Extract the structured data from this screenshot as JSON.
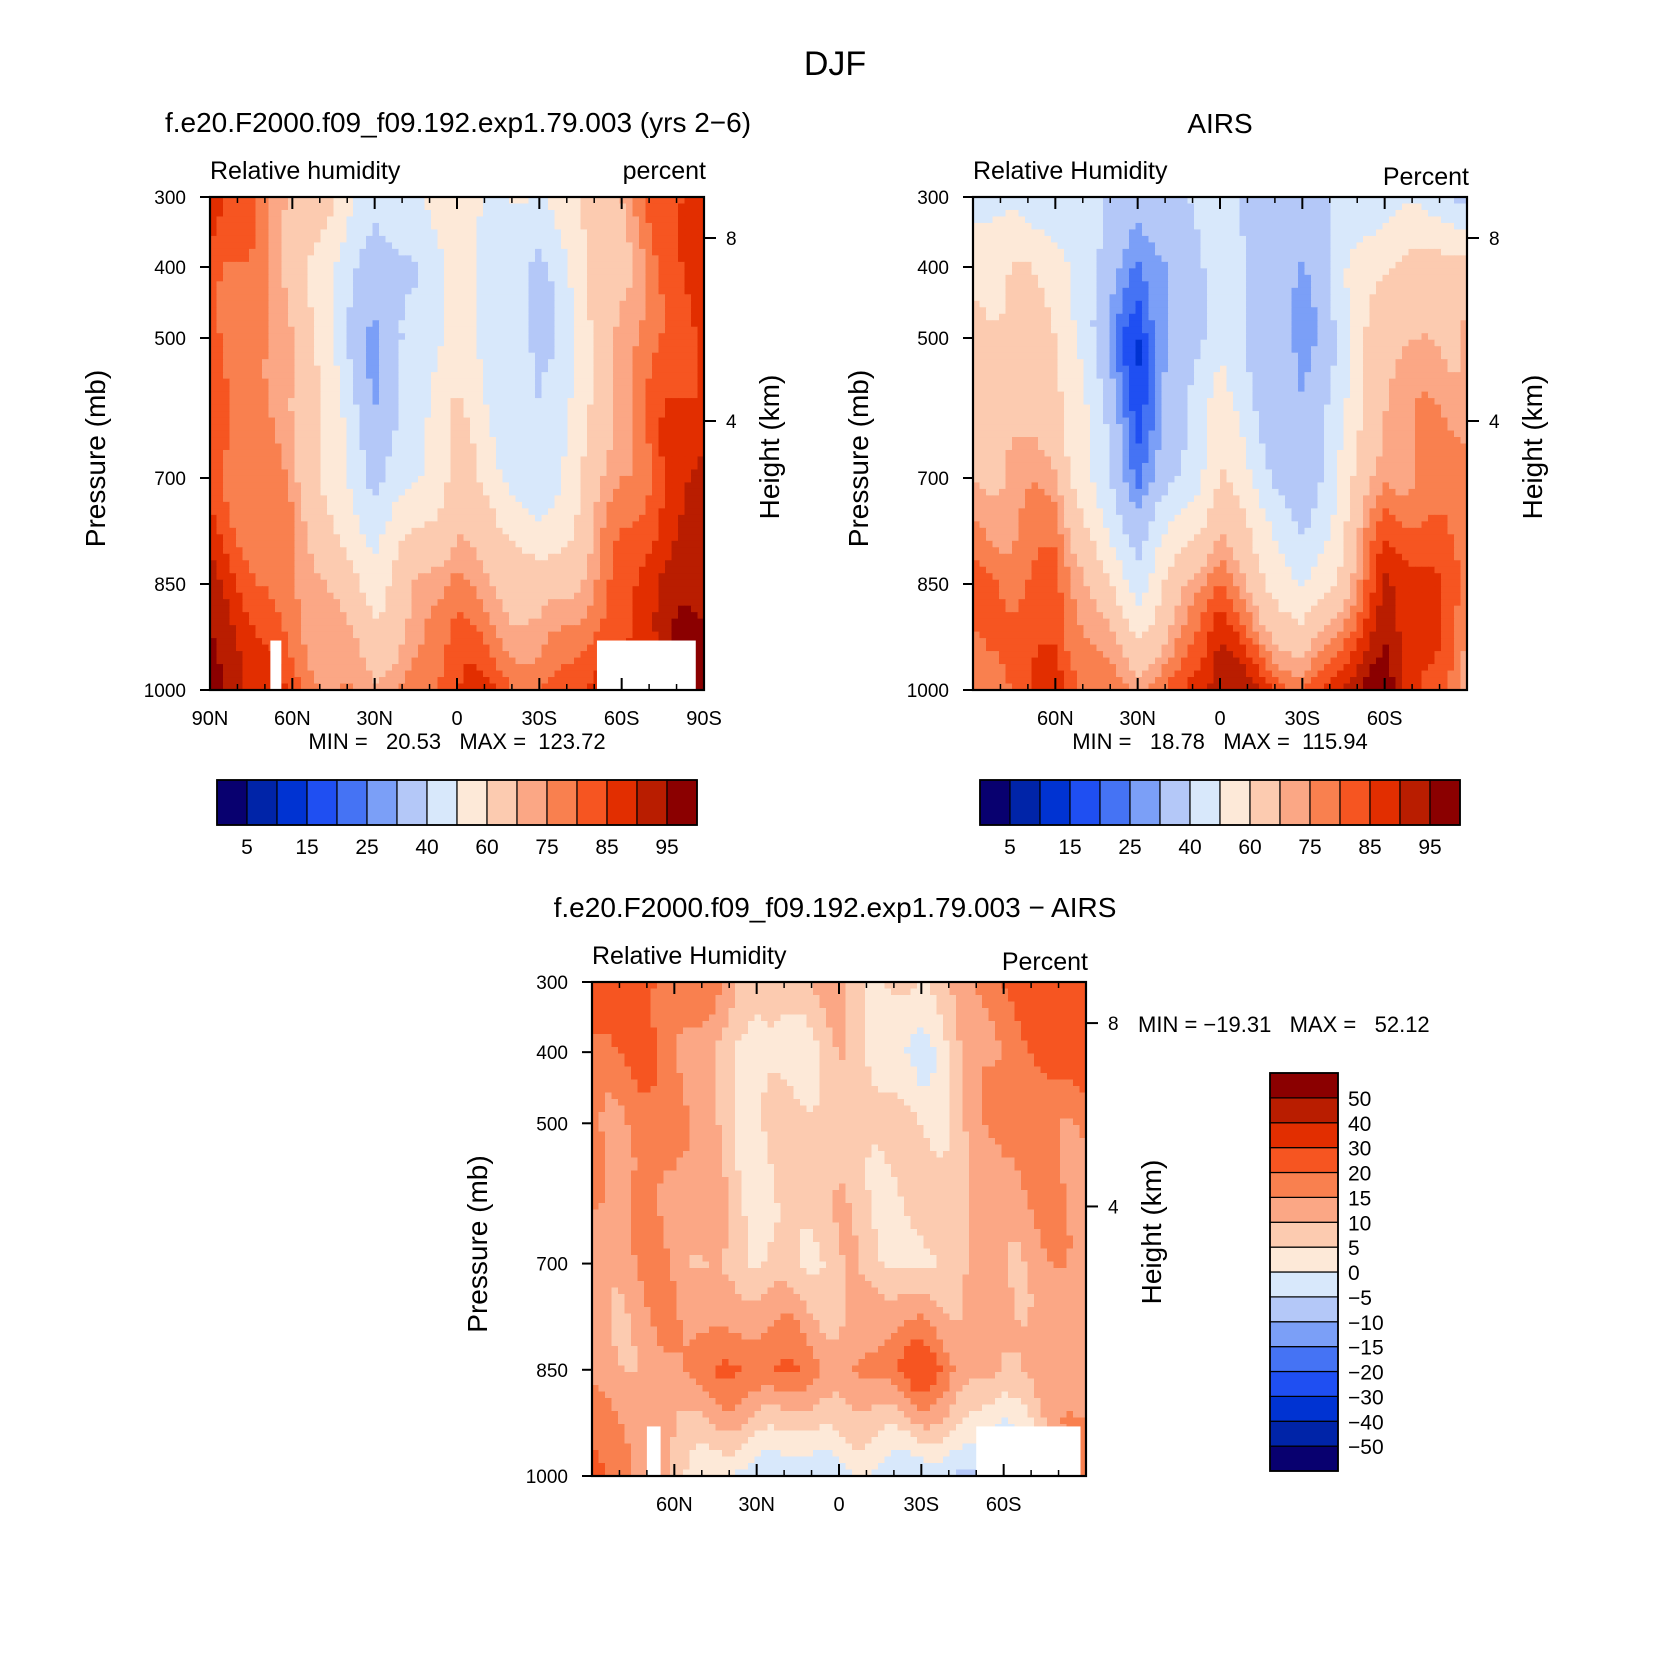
{
  "figure": {
    "title": "DJF"
  },
  "chart_data": [
    {
      "type": "heatmap",
      "id": "model",
      "title": "f.e20.F2000.f09_f09.192.exp1.79.003 (yrs 2−6)",
      "left_string": "Relative humidity",
      "right_string": "percent",
      "xlabel": "",
      "ylabel": "Pressure (mb)",
      "y2label": "Height (km)",
      "x_ticks": [
        "90N",
        "60N",
        "30N",
        "0",
        "30S",
        "60S",
        "90S"
      ],
      "y_ticks": [
        "300",
        "400",
        "500",
        "700",
        "850",
        "1000"
      ],
      "y2_ticks": [
        "8",
        "4"
      ],
      "min_max": "MIN =   20.53   MAX =  123.72",
      "x": [
        90,
        60,
        30,
        0,
        -30,
        -60,
        -90
      ],
      "y": [
        300,
        400,
        500,
        700,
        850,
        1000
      ],
      "z": [
        [
          88,
          72,
          45,
          55,
          48,
          72,
          92
        ],
        [
          85,
          68,
          32,
          52,
          38,
          70,
          90
        ],
        [
          83,
          70,
          28,
          56,
          35,
          72,
          88
        ],
        [
          82,
          74,
          36,
          64,
          40,
          76,
          92
        ],
        [
          90,
          76,
          58,
          78,
          62,
          82,
          98
        ],
        [
          98,
          82,
          70,
          86,
          80,
          88,
          96
        ]
      ],
      "missing_regions": [
        {
          "lat_from": 68,
          "lat_to": 64,
          "p_from": 930,
          "p_to": 1000
        },
        {
          "lat_from": -51,
          "lat_to": -87,
          "p_from": 930,
          "p_to": 1000
        }
      ],
      "colorbar": {
        "orientation": "horizontal",
        "levels": [
          5,
          10,
          15,
          20,
          25,
          30,
          40,
          50,
          60,
          70,
          75,
          80,
          85,
          90,
          95
        ],
        "tick_labels": [
          "5",
          "15",
          "25",
          "40",
          "60",
          "75",
          "85",
          "95"
        ],
        "colors": [
          "#08006f",
          "#0024a8",
          "#0033d2",
          "#1f4ff2",
          "#4573f4",
          "#7b9ff7",
          "#b4c8f8",
          "#d8e8fb",
          "#fde9d8",
          "#fccbb0",
          "#fba785",
          "#f9804f",
          "#f65521",
          "#e22e00",
          "#b91d00",
          "#8b0000"
        ]
      }
    },
    {
      "type": "heatmap",
      "id": "obs",
      "title": "AIRS",
      "left_string": "Relative Humidity",
      "right_string": "Percent",
      "xlabel": "",
      "ylabel": "Pressure (mb)",
      "y2label": "Height (km)",
      "x_ticks": [
        "60N",
        "30N",
        "0",
        "30S",
        "60S"
      ],
      "y_ticks": [
        "300",
        "400",
        "500",
        "700",
        "850",
        "1000"
      ],
      "y2_ticks": [
        "8",
        "4"
      ],
      "min_max": "MIN =   18.78   MAX =  115.94",
      "x": [
        90,
        60,
        30,
        0,
        -30,
        -60,
        -90
      ],
      "y": [
        300,
        400,
        500,
        700,
        850,
        1000
      ],
      "z": [
        [
          46,
          45,
          35,
          43,
          35,
          48,
          40
        ],
        [
          58,
          58,
          22,
          45,
          30,
          62,
          65
        ],
        [
          66,
          60,
          15,
          48,
          25,
          68,
          72
        ],
        [
          70,
          72,
          22,
          60,
          30,
          75,
          78
        ],
        [
          80,
          82,
          48,
          82,
          45,
          90,
          82
        ],
        [
          75,
          88,
          72,
          96,
          80,
          100,
          70
        ]
      ],
      "missing_regions": [],
      "colorbar": {
        "orientation": "horizontal",
        "levels": [
          5,
          10,
          15,
          20,
          25,
          30,
          40,
          50,
          60,
          70,
          75,
          80,
          85,
          90,
          95
        ],
        "tick_labels": [
          "5",
          "15",
          "25",
          "40",
          "60",
          "75",
          "85",
          "95"
        ],
        "colors": [
          "#08006f",
          "#0024a8",
          "#0033d2",
          "#1f4ff2",
          "#4573f4",
          "#7b9ff7",
          "#b4c8f8",
          "#d8e8fb",
          "#fde9d8",
          "#fccbb0",
          "#fba785",
          "#f9804f",
          "#f65521",
          "#e22e00",
          "#b91d00",
          "#8b0000"
        ]
      }
    },
    {
      "type": "heatmap",
      "id": "diff",
      "title": "f.e20.F2000.f09_f09.192.exp1.79.003 − AIRS",
      "left_string": "Relative Humidity",
      "right_string": "Percent",
      "xlabel": "",
      "ylabel": "Pressure (mb)",
      "y2label": "Height (km)",
      "x_ticks": [
        "60N",
        "30N",
        "0",
        "30S",
        "60S"
      ],
      "y_ticks": [
        "300",
        "400",
        "500",
        "700",
        "850",
        "1000"
      ],
      "y2_ticks": [
        "8",
        "4"
      ],
      "min_max": "MIN = −19.31   MAX =   52.12",
      "x": [
        90,
        60,
        30,
        0,
        -30,
        -60,
        -90
      ],
      "y": [
        300,
        400,
        500,
        700,
        850,
        1000
      ],
      "z": [
        [
          24,
          21,
          9,
          10,
          3,
          22,
          30
        ],
        [
          21,
          18,
          0,
          8,
          -2,
          18,
          24
        ],
        [
          16,
          17,
          4,
          9,
          4,
          16,
          17
        ],
        [
          12,
          15,
          4,
          8,
          4,
          12,
          14
        ],
        [
          10,
          14,
          23,
          13,
          24,
          8,
          16
        ],
        [
          23,
          8,
          -6,
          -2,
          -4,
          -8,
          18
        ]
      ],
      "missing_regions": [
        {
          "lat_from": 70,
          "lat_to": 65,
          "p_from": 930,
          "p_to": 1000
        },
        {
          "lat_from": -50,
          "lat_to": -88,
          "p_from": 930,
          "p_to": 1000
        }
      ],
      "colorbar": {
        "orientation": "vertical",
        "levels": [
          -50,
          -40,
          -30,
          -20,
          -15,
          -10,
          -5,
          0,
          5,
          10,
          15,
          20,
          30,
          40,
          50
        ],
        "tick_labels": [
          "−50",
          "−40",
          "−30",
          "−20",
          "−15",
          "−10",
          "−5",
          "0",
          "5",
          "10",
          "15",
          "20",
          "30",
          "40",
          "50"
        ],
        "colors": [
          "#08006f",
          "#0024a8",
          "#0033d2",
          "#1f4ff2",
          "#4573f4",
          "#7b9ff7",
          "#b4c8f8",
          "#d8e8fb",
          "#fde9d8",
          "#fccbb0",
          "#fba785",
          "#f9804f",
          "#f65521",
          "#e22e00",
          "#b91d00",
          "#8b0000"
        ]
      }
    }
  ]
}
